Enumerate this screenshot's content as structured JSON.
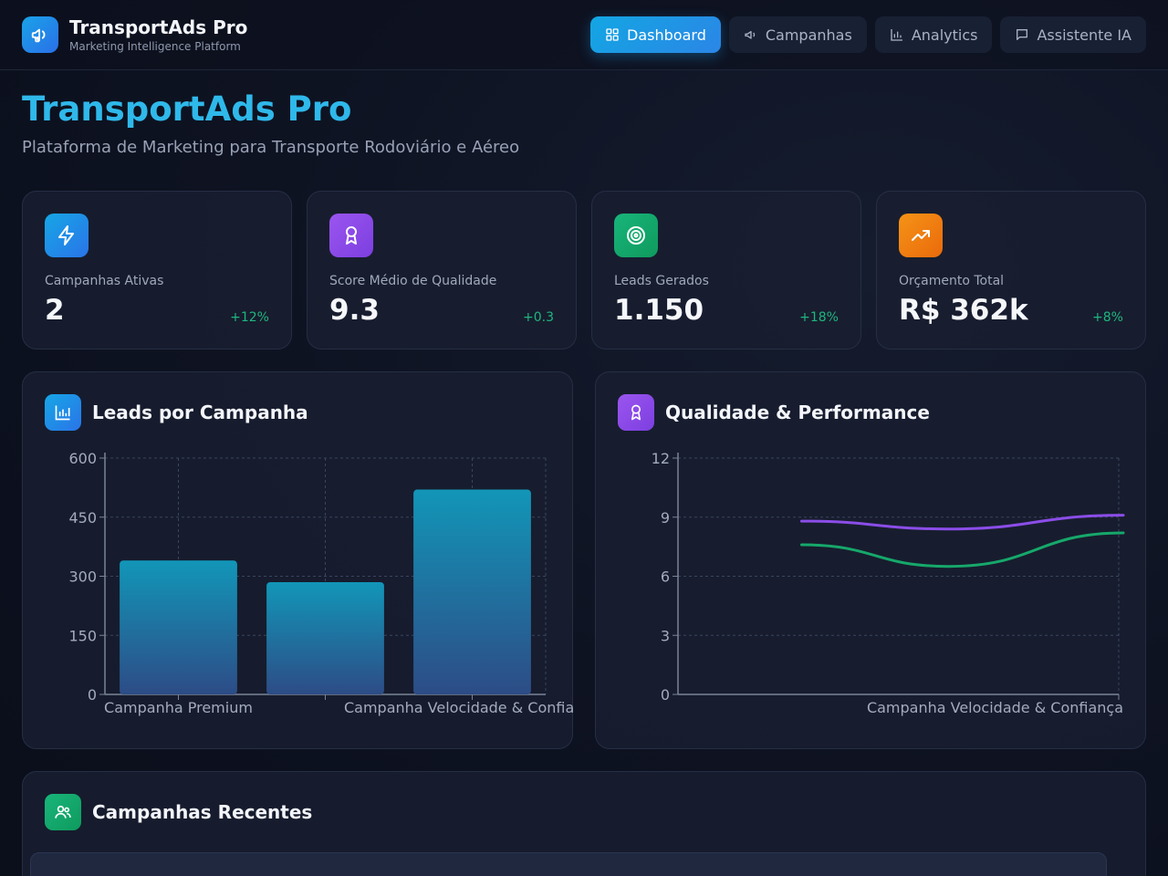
{
  "header": {
    "brand_name": "TransportAds Pro",
    "brand_sub": "Marketing Intelligence Platform",
    "nav": [
      {
        "label": "Dashboard",
        "icon": "grid-icon",
        "active": true
      },
      {
        "label": "Campanhas",
        "icon": "megaphone-icon",
        "active": false
      },
      {
        "label": "Analytics",
        "icon": "bar-chart-icon",
        "active": false
      },
      {
        "label": "Assistente IA",
        "icon": "chat-icon",
        "active": false
      }
    ]
  },
  "hero": {
    "title": "TransportAds Pro",
    "subtitle": "Plataforma de Marketing para Transporte Rodoviário e Aéreo"
  },
  "kpis": [
    {
      "label": "Campanhas Ativas",
      "value": "2",
      "delta": "+12%",
      "icon": "lightning-icon",
      "color": "#1e9be8"
    },
    {
      "label": "Score Médio de Qualidade",
      "value": "9.3",
      "delta": "+0.3",
      "icon": "award-icon",
      "color": "#8b4de8"
    },
    {
      "label": "Leads Gerados",
      "value": "1.150",
      "delta": "+18%",
      "icon": "target-icon",
      "color": "#16a86b"
    },
    {
      "label": "Orçamento Total",
      "value": "R$ 362k",
      "delta": "+8%",
      "icon": "trend-up-icon",
      "color": "#f07a12"
    }
  ],
  "panels": {
    "leads_title": "Leads por Campanha",
    "quality_title": "Qualidade & Performance",
    "recent_title": "Campanhas Recentes"
  },
  "chart_data": [
    {
      "type": "bar",
      "title": "Leads por Campanha",
      "categories": [
        "Campanha Premium",
        "",
        "Campanha Velocidade & Confiança"
      ],
      "values": [
        340,
        285,
        520
      ],
      "yticks": [
        "0",
        "150",
        "300",
        "450",
        "600"
      ],
      "ylim": [
        0,
        600
      ],
      "grid": true
    },
    {
      "type": "line",
      "title": "Qualidade & Performance",
      "categories": [
        "",
        "",
        "Campanha Velocidade & Confiança"
      ],
      "series": [
        {
          "values": [
            8.8,
            8.4,
            9.1
          ],
          "color": "#8b4de8"
        },
        {
          "values": [
            7.6,
            6.5,
            8.2
          ],
          "color": "#16a86b"
        }
      ],
      "yticks": [
        "0",
        "3",
        "6",
        "9",
        "12"
      ],
      "ylim": [
        0,
        12
      ],
      "grid": true
    }
  ]
}
